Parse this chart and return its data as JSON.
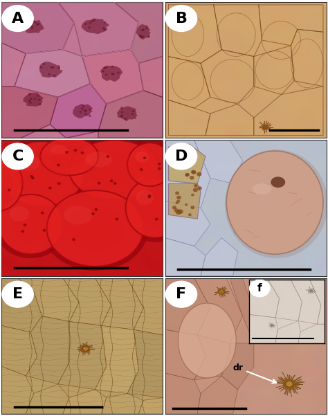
{
  "fig_bg": "#ffffff",
  "panels": [
    "A",
    "B",
    "C",
    "D",
    "E",
    "F"
  ],
  "A_bg": [
    210,
    140,
    160
  ],
  "B_bg": [
    210,
    160,
    110
  ],
  "C_bg": [
    200,
    30,
    30
  ],
  "D_bg": [
    185,
    190,
    200
  ],
  "E_bg": [
    190,
    160,
    100
  ],
  "F_bg": [
    200,
    150,
    130
  ],
  "label_fs": 16,
  "scalebar_color": "black",
  "annotation_dr": "dr"
}
